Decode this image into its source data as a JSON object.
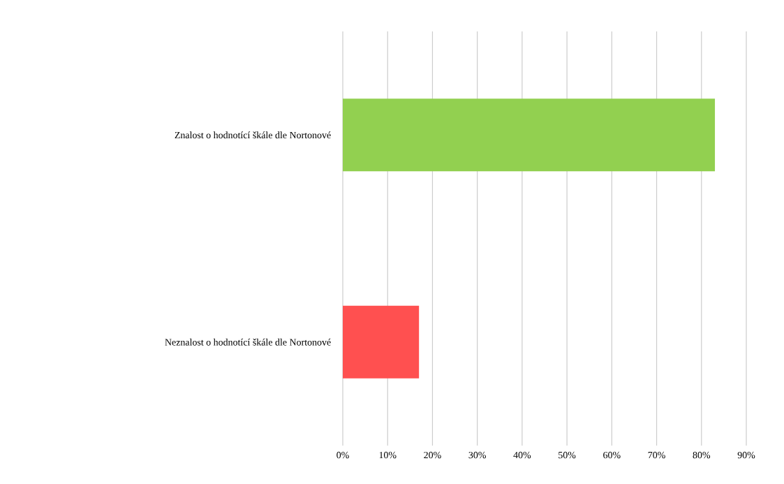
{
  "chart_data": {
    "type": "bar",
    "orientation": "horizontal",
    "categories": [
      "Znalost o hodnotící škále dle Nortonové",
      "Neznalost o hodnotící škále dle Nortonové"
    ],
    "values": [
      83,
      17
    ],
    "colors": [
      "#92d050",
      "#ff5050"
    ],
    "xlim": [
      0,
      90
    ],
    "xticks": [
      {
        "value": 0,
        "label": "0%"
      },
      {
        "value": 10,
        "label": "10%"
      },
      {
        "value": 20,
        "label": "20%"
      },
      {
        "value": 30,
        "label": "30%"
      },
      {
        "value": 40,
        "label": "40%"
      },
      {
        "value": 50,
        "label": "50%"
      },
      {
        "value": 60,
        "label": "60%"
      },
      {
        "value": 70,
        "label": "70%"
      },
      {
        "value": 80,
        "label": "80%"
      },
      {
        "value": 90,
        "label": "90%"
      }
    ],
    "grid": "x"
  }
}
